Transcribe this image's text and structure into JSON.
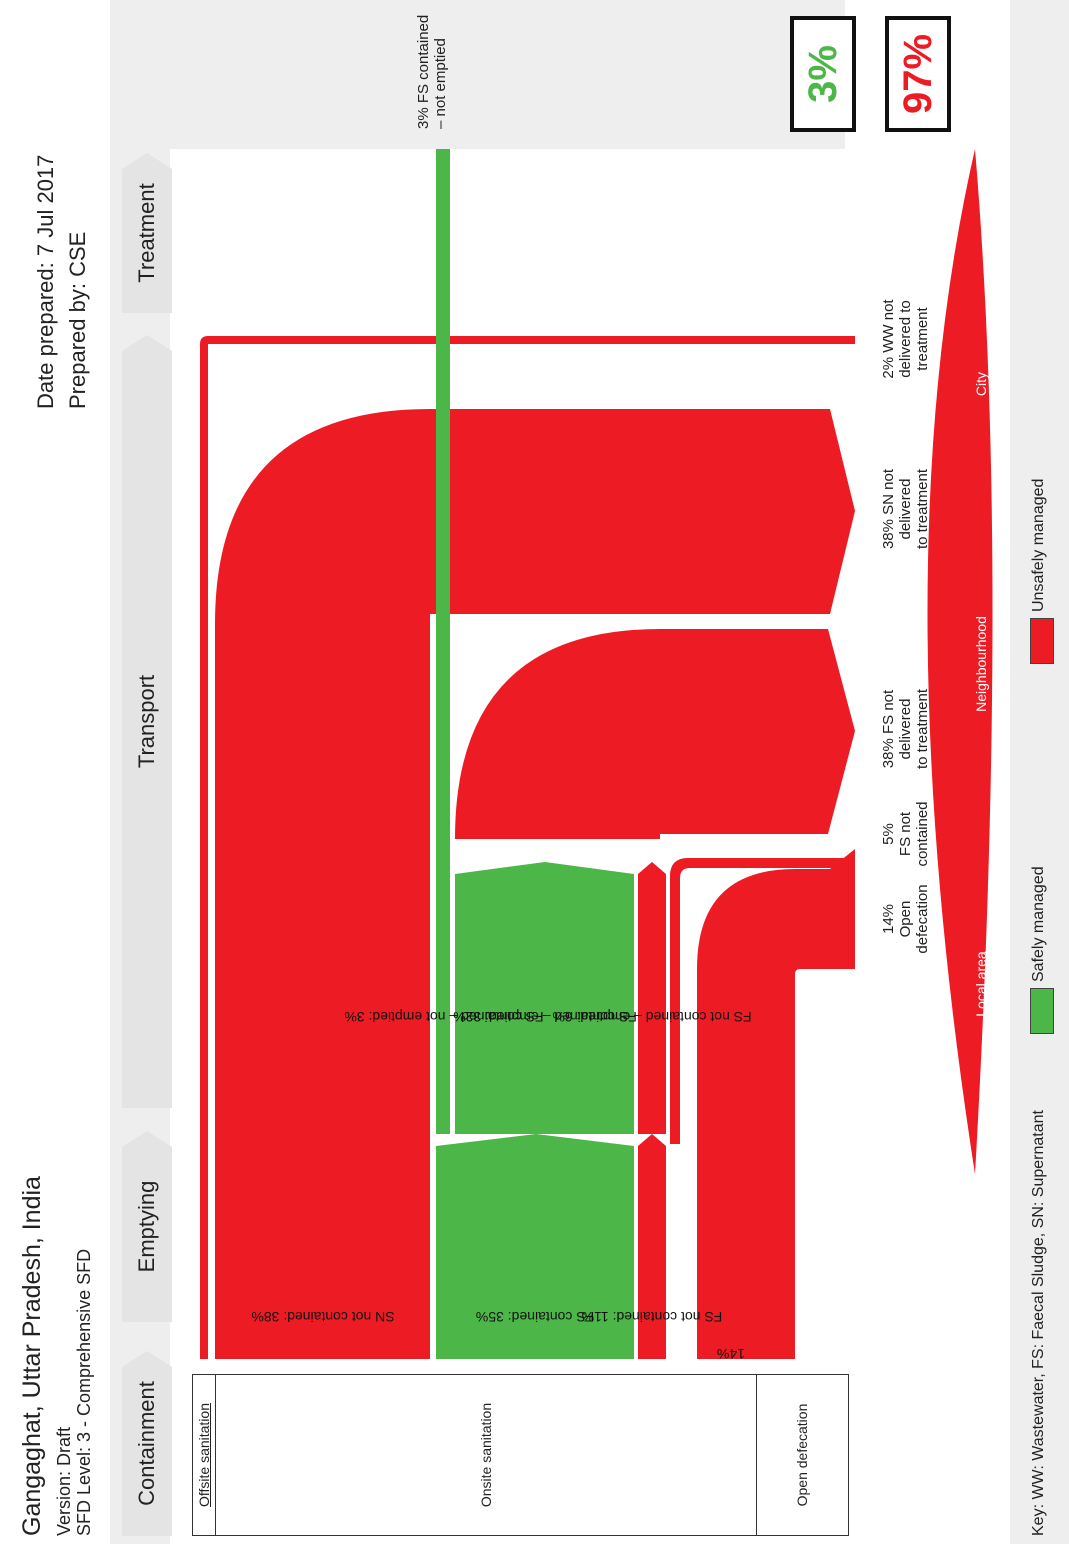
{
  "header": {
    "title": "Gangaghat, Uttar Pradesh, India",
    "version": "Version: Draft",
    "sfd_level": "SFD Level: 3 - Comprehensive SFD",
    "date_prepared": "Date prepared: 7 Jul 2017",
    "prepared_by": "Prepared by: CSE"
  },
  "stages": [
    "Containment",
    "Emptying",
    "Transport",
    "Treatment"
  ],
  "categories": {
    "offsite": "Offsite sanitation",
    "onsite": "Onsite sanitation",
    "open": "Open defecation"
  },
  "flows": {
    "sn_not_contained": "SN not contained: 38%",
    "fs_contained": "FS contained: 35%",
    "fs_not_contained": "FS not contained: 11%",
    "open_defecation": "14%",
    "fs_not_emptied": "FS contained – not emptied: 3%",
    "fs_emptied": "FS contained – emptied: 32%",
    "fs_nc_emptied": "FS not contained – emptied: 6%"
  },
  "outcomes": {
    "open_defecation": [
      "14%",
      "Open",
      "defecation"
    ],
    "fs_not_contained": [
      "5%",
      "FS not",
      "contained"
    ],
    "fs_not_delivered": [
      "38% FS not",
      "delivered",
      "to treatment"
    ],
    "sn_not_delivered": [
      "38% SN not",
      "delivered",
      "to treatment"
    ],
    "ww_not_delivered": [
      "2% WW not",
      "delivered to",
      "treatment"
    ],
    "fs_not_emptied": [
      "3% FS contained",
      "– not emptied"
    ]
  },
  "scale": {
    "local": "Local area",
    "neighbourhood": "Neighbourhood",
    "city": "City"
  },
  "totals": {
    "safe": "3%",
    "unsafe": "97%"
  },
  "legend": {
    "key": "Key: WW: Wastewater, FS: Faecal Sludge, SN: Supernatant",
    "safe": "Safely managed",
    "unsafe": "Unsafely managed"
  },
  "colors": {
    "safe": "#4cb748",
    "unsafe": "#ed1c24"
  }
}
